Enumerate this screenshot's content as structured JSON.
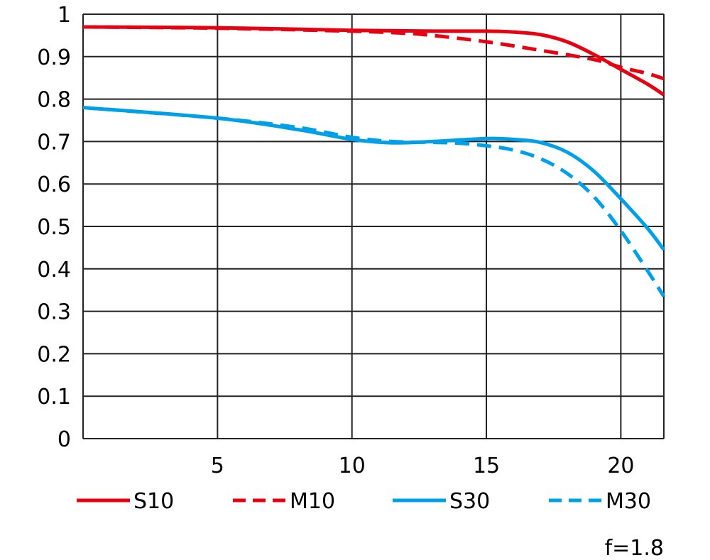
{
  "chart_data": {
    "type": "line",
    "title": "",
    "xlabel": "",
    "ylabel": "",
    "xlim": [
      0,
      21.6
    ],
    "ylim": [
      0,
      1
    ],
    "grid": true,
    "x_ticks": [
      "5",
      "10",
      "15",
      "20"
    ],
    "x_tick_values": [
      5,
      10,
      15,
      20
    ],
    "y_ticks": [
      "0",
      "0.1",
      "0.2",
      "0.3",
      "0.4",
      "0.5",
      "0.6",
      "0.7",
      "0.8",
      "0.9",
      "1"
    ],
    "legend_position": "bottom",
    "annotation": "f=1.8",
    "series": [
      {
        "name": "S10",
        "color": "#e60012",
        "dash": false,
        "x": [
          0,
          5,
          10,
          13,
          15,
          16,
          17,
          18,
          19,
          20,
          21,
          21.6
        ],
        "y": [
          0.97,
          0.968,
          0.962,
          0.96,
          0.96,
          0.958,
          0.952,
          0.935,
          0.905,
          0.87,
          0.835,
          0.81
        ]
      },
      {
        "name": "M10",
        "color": "#e60012",
        "dash": true,
        "x": [
          0,
          5,
          10,
          12,
          13,
          15,
          17,
          19,
          20,
          21,
          21.6
        ],
        "y": [
          0.97,
          0.967,
          0.96,
          0.955,
          0.95,
          0.935,
          0.915,
          0.893,
          0.875,
          0.86,
          0.848
        ]
      },
      {
        "name": "S30",
        "color": "#00a0e9",
        "dash": false,
        "x": [
          0,
          5,
          8,
          10,
          11.5,
          13,
          15,
          16,
          17,
          18,
          19,
          20,
          21,
          21.6
        ],
        "y": [
          0.78,
          0.755,
          0.728,
          0.705,
          0.697,
          0.7,
          0.707,
          0.705,
          0.698,
          0.675,
          0.63,
          0.565,
          0.495,
          0.445
        ]
      },
      {
        "name": "M30",
        "color": "#00a0e9",
        "dash": true,
        "x": [
          0,
          5,
          8,
          10,
          11.5,
          13,
          14,
          15,
          16,
          17,
          18,
          19,
          20,
          21,
          21.6
        ],
        "y": [
          0.78,
          0.755,
          0.733,
          0.71,
          0.7,
          0.698,
          0.696,
          0.69,
          0.68,
          0.66,
          0.625,
          0.57,
          0.49,
          0.395,
          0.335
        ]
      }
    ]
  }
}
